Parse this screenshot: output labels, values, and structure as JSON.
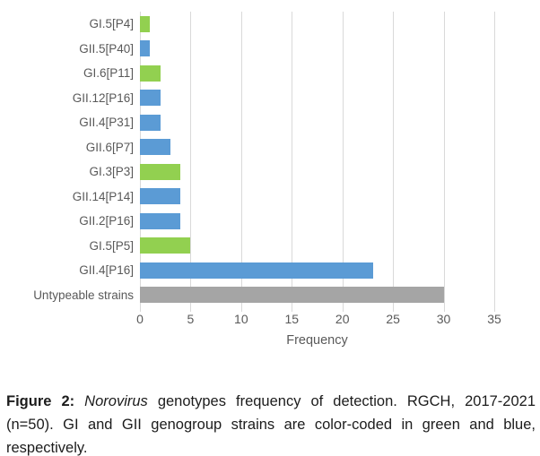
{
  "chart_data": {
    "type": "bar",
    "orientation": "horizontal",
    "title": "",
    "xlabel": "Frequency",
    "ylabel": "",
    "xlim": [
      0,
      35
    ],
    "xticks": [
      0,
      5,
      10,
      15,
      20,
      25,
      30,
      35
    ],
    "grid": true,
    "categories": [
      "GI.5[P4]",
      "GII.5[P40]",
      "GI.6[P11]",
      "GII.12[P16]",
      "GII.4[P31]",
      "GII.6[P7]",
      "GI.3[P3]",
      "GII.14[P14]",
      "GII.2[P16]",
      "GI.5[P5]",
      "GII.4[P16]",
      "Untypeable strains"
    ],
    "values": [
      1,
      1,
      2,
      2,
      2,
      3,
      4,
      4,
      4,
      5,
      23,
      30
    ],
    "bar_color_keys": [
      "green",
      "blue",
      "green",
      "blue",
      "blue",
      "blue",
      "green",
      "blue",
      "blue",
      "green",
      "blue",
      "gray"
    ],
    "palette": {
      "green": "#92D050",
      "blue": "#5B9BD5",
      "gray": "#A5A5A5"
    },
    "gridline_color": "#D9D9D9",
    "tick_label_color": "#595959"
  },
  "caption": {
    "figure_label": "Figure 2:",
    "italic_term": " Norovirus",
    "text_after_italic": " genotypes frequency of detection. RGCH, 2017-2021 (n=50). GI and GII genogroup strains are color-coded in green and blue, respectively."
  }
}
